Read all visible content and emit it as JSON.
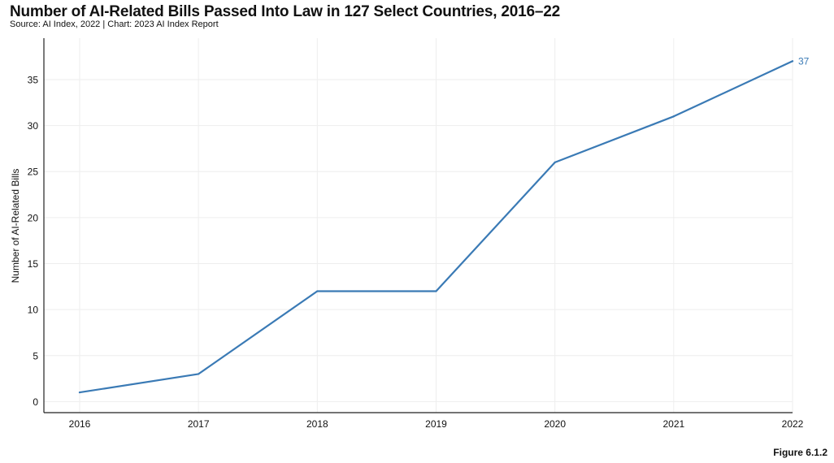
{
  "header": {
    "title": "Number of AI-Related Bills Passed Into Law in 127 Select Countries, 2016–22",
    "subtitle": "Source: AI Index, 2022 | Chart: 2023 AI Index Report"
  },
  "footer": {
    "figure_label": "Figure 6.1.2"
  },
  "colors": {
    "line": "#3a7ab5",
    "value_label": "#3a7ab5",
    "grid": "#eeeeee",
    "axis": "#222222"
  },
  "chart_data": {
    "type": "line",
    "title": "Number of AI-Related Bills Passed Into Law in 127 Select Countries, 2016–22",
    "xlabel": "",
    "ylabel": "Number of AI-Related Bills",
    "categories": [
      "2016",
      "2017",
      "2018",
      "2019",
      "2020",
      "2021",
      "2022"
    ],
    "series": [
      {
        "values": [
          1,
          3,
          12,
          12,
          26,
          31,
          37
        ]
      }
    ],
    "data_labels": [
      {
        "index": 6,
        "text": "37"
      }
    ],
    "ylim": [
      -1.2,
      39.5
    ],
    "yticks": [
      0,
      5,
      10,
      15,
      20,
      25,
      30,
      35
    ],
    "grid": true,
    "legend": "none"
  }
}
